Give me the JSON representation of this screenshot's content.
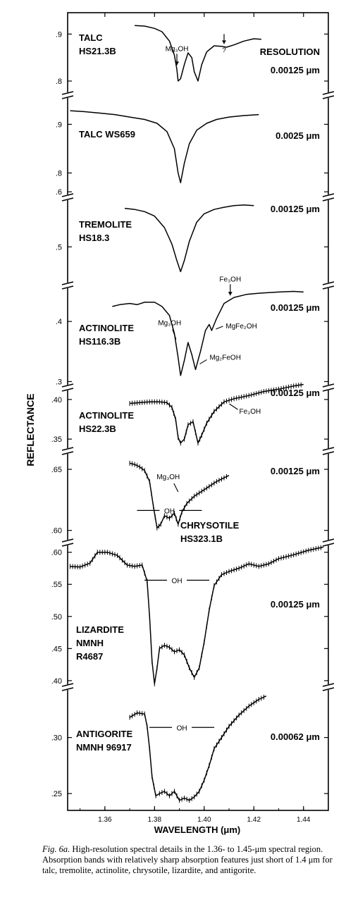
{
  "chart_data": {
    "type": "line",
    "xlabel": "WAVELENGTH (μm)",
    "ylabel": "REFLECTANCE",
    "xlim": [
      1.345,
      1.45
    ],
    "x_ticks": [
      "1.36",
      "1.38",
      "1.40",
      "1.42",
      "1.44"
    ],
    "resolution_header": "RESOLUTION",
    "panels": [
      {
        "id": "talc-hs213b",
        "sample": [
          "TALC",
          "HS21.3B"
        ],
        "resolution": "0.00125 μm",
        "yticks": [
          ".9",
          ".8"
        ],
        "error_bars": false,
        "points": [
          [
            1.372,
            0.918
          ],
          [
            1.376,
            0.917
          ],
          [
            1.38,
            0.912
          ],
          [
            1.383,
            0.905
          ],
          [
            1.386,
            0.885
          ],
          [
            1.388,
            0.855
          ],
          [
            1.389,
            0.825
          ],
          [
            1.3895,
            0.8
          ],
          [
            1.3905,
            0.805
          ],
          [
            1.392,
            0.835
          ],
          [
            1.3935,
            0.86
          ],
          [
            1.395,
            0.85
          ],
          [
            1.396,
            0.82
          ],
          [
            1.3975,
            0.8
          ],
          [
            1.399,
            0.835
          ],
          [
            1.401,
            0.862
          ],
          [
            1.404,
            0.875
          ],
          [
            1.407,
            0.874
          ],
          [
            1.409,
            0.872
          ],
          [
            1.412,
            0.877
          ],
          [
            1.416,
            0.885
          ],
          [
            1.42,
            0.89
          ],
          [
            1.423,
            0.889
          ]
        ],
        "annotations": [
          {
            "text": "Mg₃OH",
            "x": 1.389
          },
          {
            "text": "?",
            "x": 1.408
          }
        ]
      },
      {
        "id": "talc-ws659",
        "sample": [
          "TALC WS659"
        ],
        "resolution": "0.0025 μm",
        "yticks": [
          ".9",
          ".8"
        ],
        "error_bars": false,
        "points": [
          [
            1.346,
            0.928
          ],
          [
            1.352,
            0.926
          ],
          [
            1.358,
            0.923
          ],
          [
            1.364,
            0.92
          ],
          [
            1.37,
            0.915
          ],
          [
            1.376,
            0.91
          ],
          [
            1.381,
            0.902
          ],
          [
            1.385,
            0.885
          ],
          [
            1.388,
            0.85
          ],
          [
            1.3895,
            0.8
          ],
          [
            1.3905,
            0.78
          ],
          [
            1.392,
            0.82
          ],
          [
            1.394,
            0.86
          ],
          [
            1.397,
            0.888
          ],
          [
            1.401,
            0.902
          ],
          [
            1.405,
            0.91
          ],
          [
            1.41,
            0.915
          ],
          [
            1.416,
            0.918
          ],
          [
            1.422,
            0.92
          ]
        ],
        "annotations": []
      },
      {
        "id": "tremolite-hs183",
        "sample": [
          "TREMOLITE",
          "HS18.3"
        ],
        "resolution": "0.00125 μm",
        "yticks": [
          ".6",
          ".5"
        ],
        "error_bars": false,
        "points": [
          [
            1.368,
            0.57
          ],
          [
            1.372,
            0.568
          ],
          [
            1.376,
            0.564
          ],
          [
            1.38,
            0.556
          ],
          [
            1.384,
            0.535
          ],
          [
            1.387,
            0.505
          ],
          [
            1.389,
            0.475
          ],
          [
            1.3905,
            0.455
          ],
          [
            1.392,
            0.475
          ],
          [
            1.394,
            0.51
          ],
          [
            1.397,
            0.545
          ],
          [
            1.4,
            0.56
          ],
          [
            1.404,
            0.568
          ],
          [
            1.408,
            0.572
          ],
          [
            1.412,
            0.575
          ],
          [
            1.416,
            0.576
          ],
          [
            1.42,
            0.575
          ]
        ],
        "annotations": []
      },
      {
        "id": "actinolite-hs1163b",
        "sample": [
          "ACTINOLITE",
          "HS116.3B"
        ],
        "resolution": "0.00125 μm",
        "yticks": [
          ".4",
          ".3"
        ],
        "error_bars": false,
        "points": [
          [
            1.363,
            0.425
          ],
          [
            1.366,
            0.428
          ],
          [
            1.37,
            0.43
          ],
          [
            1.373,
            0.428
          ],
          [
            1.376,
            0.432
          ],
          [
            1.38,
            0.432
          ],
          [
            1.383,
            0.425
          ],
          [
            1.386,
            0.41
          ],
          [
            1.388,
            0.38
          ],
          [
            1.3895,
            0.34
          ],
          [
            1.3905,
            0.31
          ],
          [
            1.392,
            0.335
          ],
          [
            1.3935,
            0.365
          ],
          [
            1.395,
            0.345
          ],
          [
            1.3965,
            0.32
          ],
          [
            1.3985,
            0.35
          ],
          [
            1.4005,
            0.385
          ],
          [
            1.402,
            0.395
          ],
          [
            1.403,
            0.385
          ],
          [
            1.405,
            0.405
          ],
          [
            1.408,
            0.43
          ],
          [
            1.412,
            0.44
          ],
          [
            1.417,
            0.445
          ],
          [
            1.422,
            0.447
          ],
          [
            1.426,
            0.448
          ],
          [
            1.43,
            0.449
          ],
          [
            1.436,
            0.45
          ],
          [
            1.44,
            0.449
          ]
        ],
        "annotations": [
          {
            "text": "Fe₃OH",
            "x": 1.4105
          },
          {
            "text": "MgFe₂OH",
            "x": 1.403
          },
          {
            "text": "Mg₂FeOH",
            "x": 1.3965
          },
          {
            "text": "Mg₃OH",
            "x": 1.3895
          }
        ]
      },
      {
        "id": "actinolite-hs223b",
        "sample": [
          "ACTINOLITE",
          "HS22.3B"
        ],
        "resolution": "0.00125 μm",
        "yticks": [
          ".40",
          ".35"
        ],
        "error_bars": true,
        "points": [
          [
            1.37,
            0.395
          ],
          [
            1.374,
            0.396
          ],
          [
            1.378,
            0.397
          ],
          [
            1.382,
            0.397
          ],
          [
            1.385,
            0.396
          ],
          [
            1.387,
            0.39
          ],
          [
            1.3885,
            0.375
          ],
          [
            1.3895,
            0.352
          ],
          [
            1.3905,
            0.345
          ],
          [
            1.392,
            0.35
          ],
          [
            1.3935,
            0.368
          ],
          [
            1.3955,
            0.372
          ],
          [
            1.3975,
            0.345
          ],
          [
            1.399,
            0.355
          ],
          [
            1.401,
            0.37
          ],
          [
            1.404,
            0.385
          ],
          [
            1.408,
            0.397
          ],
          [
            1.412,
            0.401
          ],
          [
            1.418,
            0.405
          ],
          [
            1.424,
            0.41
          ],
          [
            1.43,
            0.413
          ],
          [
            1.436,
            0.417
          ],
          [
            1.44,
            0.419
          ]
        ],
        "annotations": [
          {
            "text": "Fe₃OH",
            "x": 1.409
          }
        ]
      },
      {
        "id": "chrysotile-hs3231b",
        "sample": [
          "CHRYSOTILE",
          "HS323.1B"
        ],
        "resolution": "0.00125 μm",
        "yticks": [
          ".65",
          ".60"
        ],
        "error_bars": true,
        "points": [
          [
            1.37,
            0.655
          ],
          [
            1.372,
            0.654
          ],
          [
            1.374,
            0.652
          ],
          [
            1.376,
            0.649
          ],
          [
            1.378,
            0.64
          ],
          [
            1.3795,
            0.62
          ],
          [
            1.381,
            0.602
          ],
          [
            1.3825,
            0.605
          ],
          [
            1.384,
            0.612
          ],
          [
            1.386,
            0.61
          ],
          [
            1.388,
            0.614
          ],
          [
            1.3895,
            0.605
          ],
          [
            1.391,
            0.615
          ],
          [
            1.393,
            0.622
          ],
          [
            1.396,
            0.628
          ],
          [
            1.399,
            0.632
          ],
          [
            1.402,
            0.636
          ],
          [
            1.405,
            0.64
          ],
          [
            1.408,
            0.643
          ],
          [
            1.41,
            0.645
          ]
        ],
        "annotations": [
          {
            "text": "Mg₃OH",
            "x": 1.3895
          },
          {
            "text": "OH",
            "x": 1.386
          }
        ]
      },
      {
        "id": "lizardite-r4687",
        "sample": [
          "LIZARDITE",
          "NMNH",
          "R4687"
        ],
        "resolution": "0.00125 μm",
        "yticks": [
          ".60",
          ".55",
          ".50",
          ".45",
          ".40"
        ],
        "error_bars": true,
        "points": [
          [
            1.346,
            0.578
          ],
          [
            1.35,
            0.577
          ],
          [
            1.354,
            0.583
          ],
          [
            1.357,
            0.6
          ],
          [
            1.361,
            0.6
          ],
          [
            1.365,
            0.595
          ],
          [
            1.369,
            0.58
          ],
          [
            1.372,
            0.578
          ],
          [
            1.375,
            0.58
          ],
          [
            1.377,
            0.555
          ],
          [
            1.378,
            0.5
          ],
          [
            1.379,
            0.43
          ],
          [
            1.38,
            0.395
          ],
          [
            1.381,
            0.42
          ],
          [
            1.382,
            0.45
          ],
          [
            1.384,
            0.455
          ],
          [
            1.386,
            0.452
          ],
          [
            1.388,
            0.445
          ],
          [
            1.39,
            0.448
          ],
          [
            1.392,
            0.44
          ],
          [
            1.394,
            0.42
          ],
          [
            1.396,
            0.405
          ],
          [
            1.398,
            0.42
          ],
          [
            1.4,
            0.46
          ],
          [
            1.402,
            0.51
          ],
          [
            1.404,
            0.548
          ],
          [
            1.407,
            0.565
          ],
          [
            1.41,
            0.57
          ],
          [
            1.414,
            0.575
          ],
          [
            1.418,
            0.582
          ],
          [
            1.422,
            0.578
          ],
          [
            1.426,
            0.582
          ],
          [
            1.43,
            0.59
          ],
          [
            1.436,
            0.596
          ],
          [
            1.442,
            0.603
          ],
          [
            1.448,
            0.608
          ]
        ],
        "annotations": [
          {
            "text": "OH",
            "x": 1.389
          }
        ]
      },
      {
        "id": "antigorite-nmnh96917",
        "sample": [
          "ANTIGORITE",
          "NMNH 96917"
        ],
        "resolution": "0.00062 μm",
        "yticks": [
          ".30",
          ".25"
        ],
        "error_bars": true,
        "points": [
          [
            1.37,
            0.318
          ],
          [
            1.373,
            0.322
          ],
          [
            1.376,
            0.321
          ],
          [
            1.377,
            0.31
          ],
          [
            1.378,
            0.29
          ],
          [
            1.379,
            0.265
          ],
          [
            1.3805,
            0.248
          ],
          [
            1.382,
            0.25
          ],
          [
            1.384,
            0.252
          ],
          [
            1.386,
            0.248
          ],
          [
            1.388,
            0.252
          ],
          [
            1.39,
            0.244
          ],
          [
            1.392,
            0.246
          ],
          [
            1.394,
            0.244
          ],
          [
            1.396,
            0.247
          ],
          [
            1.398,
            0.252
          ],
          [
            1.4,
            0.262
          ],
          [
            1.402,
            0.275
          ],
          [
            1.404,
            0.29
          ],
          [
            1.407,
            0.3
          ],
          [
            1.41,
            0.31
          ],
          [
            1.414,
            0.32
          ],
          [
            1.418,
            0.328
          ],
          [
            1.422,
            0.334
          ],
          [
            1.425,
            0.337
          ]
        ],
        "annotations": [
          {
            "text": "OH",
            "x": 1.391
          }
        ]
      }
    ]
  },
  "caption": {
    "lead": "Fig. 6a.",
    "text": "High-resolution spectral details in the 1.36- to 1.45-μm spectral region. Absorption bands with relatively sharp absorption features just short of 1.4 μm for talc, tremolite, actinolite, chrysotile, lizardite, and antigorite."
  }
}
